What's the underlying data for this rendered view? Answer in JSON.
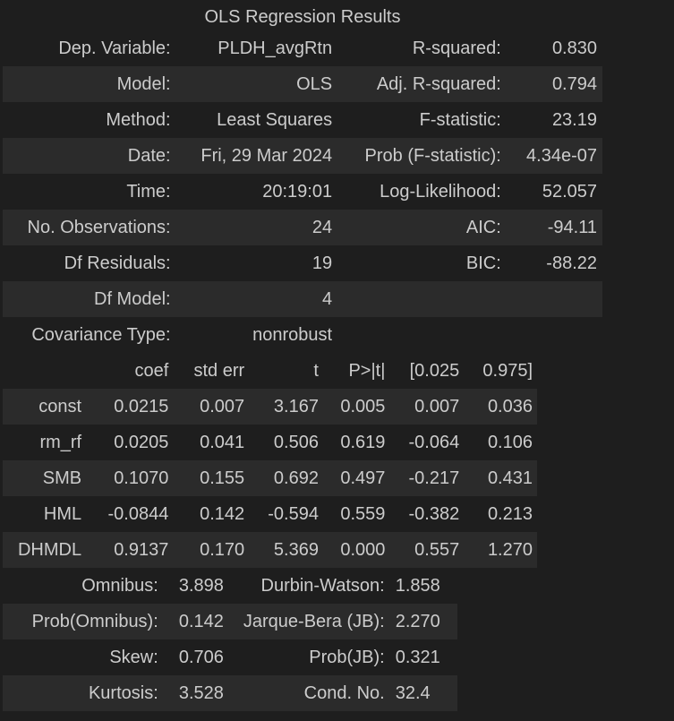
{
  "title": "OLS Regression Results",
  "summary": [
    [
      "Dep. Variable:",
      "PLDH_avgRtn",
      "R-squared:",
      "0.830"
    ],
    [
      "Model:",
      "OLS",
      "Adj. R-squared:",
      "0.794"
    ],
    [
      "Method:",
      "Least Squares",
      "F-statistic:",
      "23.19"
    ],
    [
      "Date:",
      "Fri, 29 Mar 2024",
      "Prob (F-statistic):",
      "4.34e-07"
    ],
    [
      "Time:",
      "20:19:01",
      "Log-Likelihood:",
      "52.057"
    ],
    [
      "No. Observations:",
      "24",
      "AIC:",
      "-94.11"
    ],
    [
      "Df Residuals:",
      "19",
      "BIC:",
      "-88.22"
    ],
    [
      "Df Model:",
      "4",
      "",
      ""
    ],
    [
      "Covariance Type:",
      "nonrobust",
      "",
      ""
    ]
  ],
  "coef_header": [
    "",
    "coef",
    "std err",
    "t",
    "P>|t|",
    "[0.025",
    "0.975]"
  ],
  "coef_rows": [
    [
      "const",
      "0.0215",
      "0.007",
      "3.167",
      "0.005",
      "0.007",
      "0.036"
    ],
    [
      "rm_rf",
      "0.0205",
      "0.041",
      "0.506",
      "0.619",
      "-0.064",
      "0.106"
    ],
    [
      "SMB",
      "0.1070",
      "0.155",
      "0.692",
      "0.497",
      "-0.217",
      "0.431"
    ],
    [
      "HML",
      "-0.0844",
      "0.142",
      "-0.594",
      "0.559",
      "-0.382",
      "0.213"
    ],
    [
      "DHMDL",
      "0.9137",
      "0.170",
      "5.369",
      "0.000",
      "0.557",
      "1.270"
    ]
  ],
  "diagnostics": [
    [
      "Omnibus:",
      "3.898",
      "Durbin-Watson:",
      "1.858"
    ],
    [
      "Prob(Omnibus):",
      "0.142",
      "Jarque-Bera (JB):",
      "2.270"
    ],
    [
      "Skew:",
      "0.706",
      "Prob(JB):",
      "0.321"
    ],
    [
      "Kurtosis:",
      "3.528",
      "Cond. No.",
      "32.4"
    ]
  ]
}
